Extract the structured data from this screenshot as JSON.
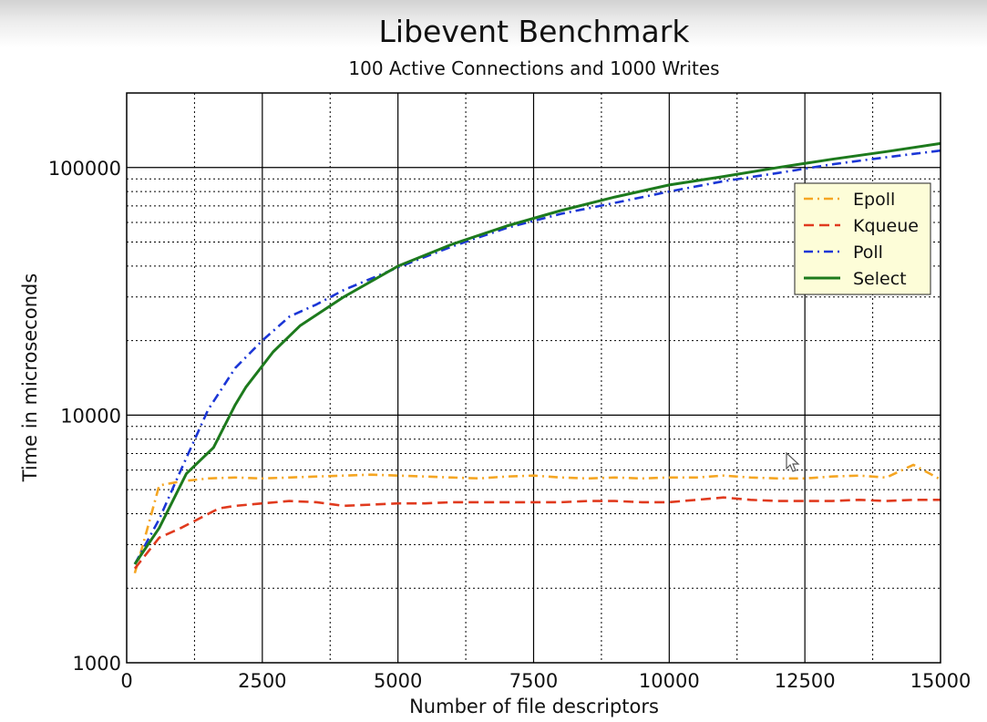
{
  "chart_data": {
    "type": "line",
    "title": "Libevent Benchmark",
    "subtitle": "100 Active Connections and 1000 Writes",
    "xlabel": "Number of file descriptors",
    "ylabel": "Time in microseconds",
    "xlim": [
      0,
      15000
    ],
    "ylim": [
      1000,
      200000
    ],
    "yscale": "log",
    "grid": true,
    "legend_position": "top-right",
    "x_ticks": [
      "0",
      "2500",
      "5000",
      "7500",
      "10000",
      "12500",
      "15000"
    ],
    "y_ticks": [
      "1000",
      "10000",
      "100000"
    ],
    "series": [
      {
        "name": "Epoll",
        "color": "#f5a623",
        "dash": "dashdot",
        "points": [
          [
            150,
            2300
          ],
          [
            300,
            3000
          ],
          [
            600,
            5200
          ],
          [
            1000,
            5400
          ],
          [
            1500,
            5550
          ],
          [
            2000,
            5600
          ],
          [
            2500,
            5550
          ],
          [
            3000,
            5600
          ],
          [
            3500,
            5650
          ],
          [
            4000,
            5700
          ],
          [
            4500,
            5750
          ],
          [
            5000,
            5700
          ],
          [
            5500,
            5650
          ],
          [
            6000,
            5600
          ],
          [
            6500,
            5550
          ],
          [
            7000,
            5650
          ],
          [
            7500,
            5700
          ],
          [
            8000,
            5600
          ],
          [
            8500,
            5550
          ],
          [
            9000,
            5600
          ],
          [
            9500,
            5550
          ],
          [
            10000,
            5600
          ],
          [
            10500,
            5600
          ],
          [
            11000,
            5700
          ],
          [
            11500,
            5600
          ],
          [
            12000,
            5550
          ],
          [
            12500,
            5550
          ],
          [
            13000,
            5650
          ],
          [
            13500,
            5700
          ],
          [
            14000,
            5600
          ],
          [
            14500,
            6300
          ],
          [
            15000,
            5500
          ]
        ]
      },
      {
        "name": "Kqueue",
        "color": "#e03a1e",
        "dash": "dashed",
        "points": [
          [
            150,
            2400
          ],
          [
            600,
            3200
          ],
          [
            1000,
            3500
          ],
          [
            1700,
            4200
          ],
          [
            2000,
            4300
          ],
          [
            2500,
            4400
          ],
          [
            3000,
            4500
          ],
          [
            3500,
            4450
          ],
          [
            4000,
            4300
          ],
          [
            4500,
            4350
          ],
          [
            5000,
            4400
          ],
          [
            5500,
            4400
          ],
          [
            6000,
            4450
          ],
          [
            6500,
            4450
          ],
          [
            7000,
            4450
          ],
          [
            7500,
            4450
          ],
          [
            8000,
            4450
          ],
          [
            8500,
            4500
          ],
          [
            9000,
            4500
          ],
          [
            9500,
            4450
          ],
          [
            10000,
            4450
          ],
          [
            10500,
            4550
          ],
          [
            11000,
            4650
          ],
          [
            11500,
            4550
          ],
          [
            12000,
            4500
          ],
          [
            12500,
            4500
          ],
          [
            13000,
            4500
          ],
          [
            13500,
            4550
          ],
          [
            14000,
            4500
          ],
          [
            14500,
            4550
          ],
          [
            15000,
            4550
          ]
        ]
      },
      {
        "name": "Poll",
        "color": "#1b36d6",
        "dash": "dashdot",
        "points": [
          [
            150,
            2500
          ],
          [
            600,
            3800
          ],
          [
            1000,
            6000
          ],
          [
            1500,
            10500
          ],
          [
            2000,
            15500
          ],
          [
            2500,
            20000
          ],
          [
            3000,
            25000
          ],
          [
            3500,
            28000
          ],
          [
            4000,
            32000
          ],
          [
            5000,
            39500
          ],
          [
            6000,
            48000
          ],
          [
            7000,
            57000
          ],
          [
            8000,
            65000
          ],
          [
            9000,
            72000
          ],
          [
            10000,
            80000
          ],
          [
            11000,
            88000
          ],
          [
            12000,
            95000
          ],
          [
            13000,
            103000
          ],
          [
            14000,
            110000
          ],
          [
            15000,
            117000
          ]
        ]
      },
      {
        "name": "Select",
        "color": "#1d7a1d",
        "dash": "solid",
        "points": [
          [
            150,
            2500
          ],
          [
            600,
            3500
          ],
          [
            1100,
            5800
          ],
          [
            1600,
            7400
          ],
          [
            2000,
            11000
          ],
          [
            2200,
            13000
          ],
          [
            2700,
            18000
          ],
          [
            3200,
            23000
          ],
          [
            4000,
            30000
          ],
          [
            5000,
            40000
          ],
          [
            6000,
            49000
          ],
          [
            7000,
            58000
          ],
          [
            8000,
            67000
          ],
          [
            9000,
            76000
          ],
          [
            10000,
            85000
          ],
          [
            11000,
            92000
          ],
          [
            12000,
            100000
          ],
          [
            13000,
            108000
          ],
          [
            14000,
            116000
          ],
          [
            15000,
            125000
          ]
        ]
      }
    ]
  }
}
